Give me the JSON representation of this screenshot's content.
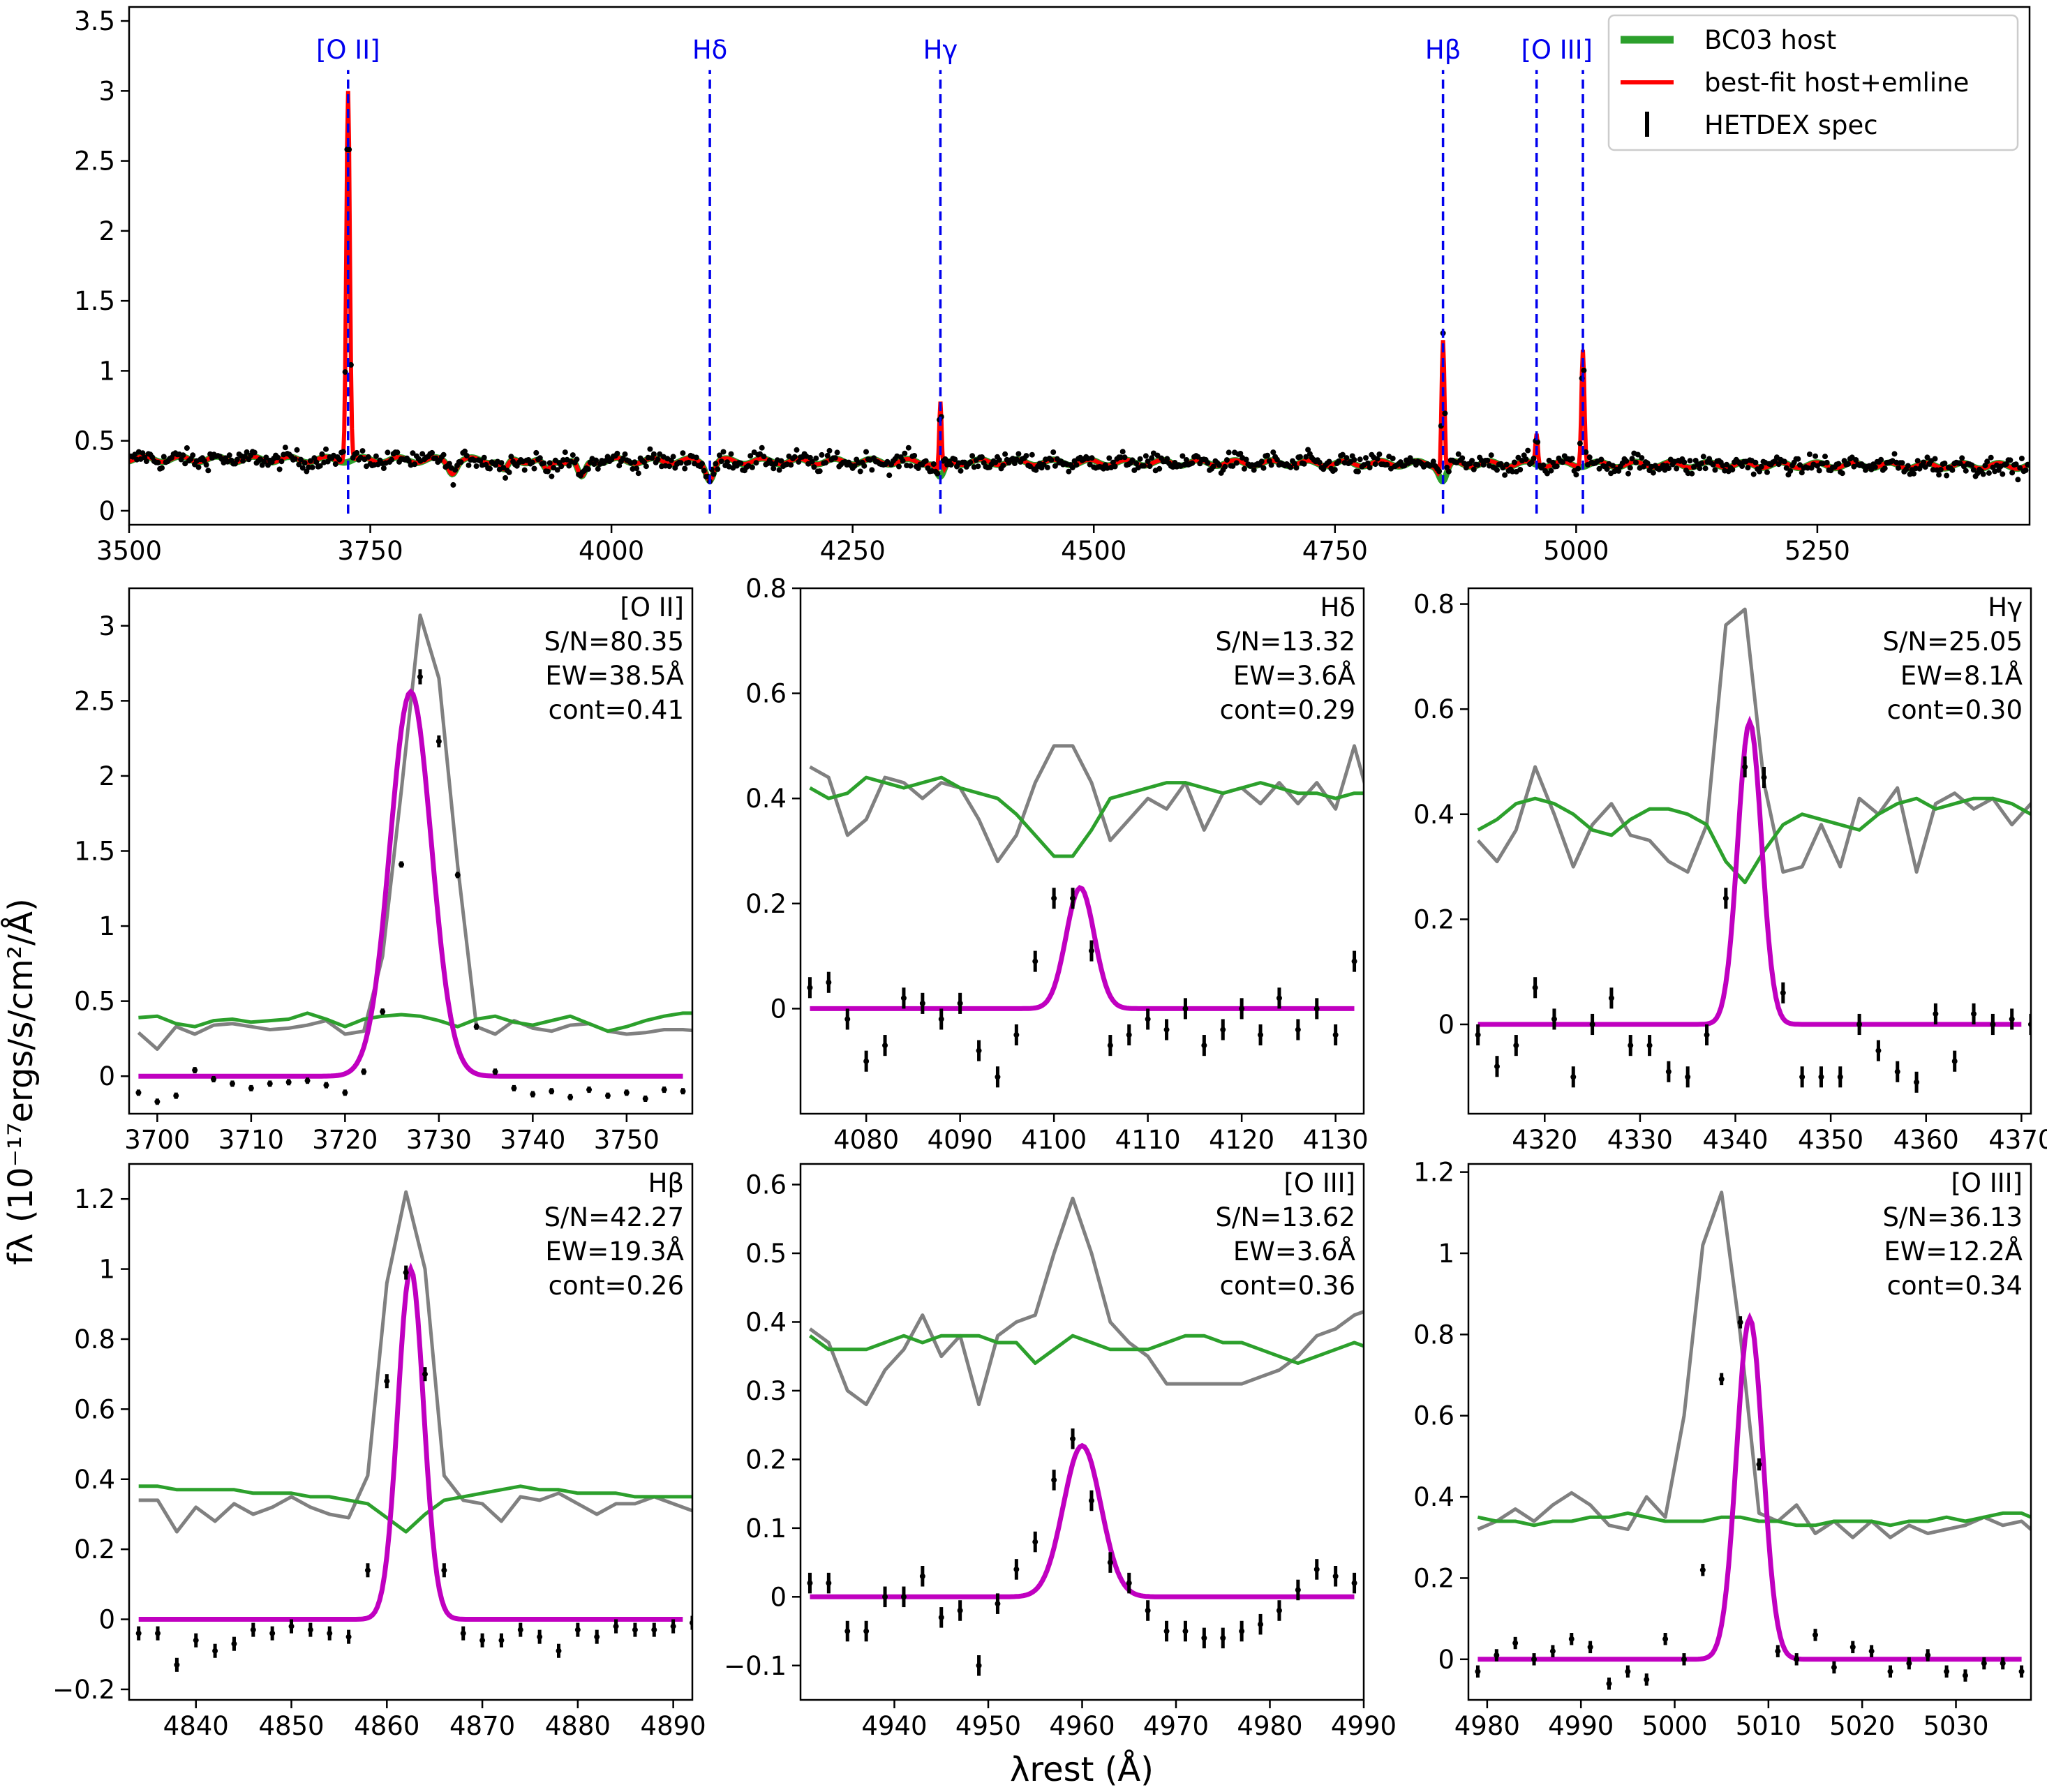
{
  "figure": {
    "xlabel": "λrest (Å)",
    "ylabel": "fλ (10⁻¹⁷ergs/s/cm²/Å)"
  },
  "colors": {
    "host": "#2ca02c",
    "fit": "#ff0000",
    "data": "#000000",
    "gauss": "#c000c0",
    "model_total": "#808080",
    "line_marker": "#0000ee"
  },
  "chart_data": [
    {
      "id": "overview",
      "type": "line",
      "xlim": [
        3500,
        5470
      ],
      "ylim": [
        -0.1,
        3.6
      ],
      "xticks": [
        3500,
        3750,
        4000,
        4250,
        4500,
        4750,
        5000,
        5250
      ],
      "yticks": [
        0.0,
        0.5,
        1.0,
        1.5,
        2.0,
        2.5,
        3.0,
        3.5
      ],
      "continuum": 0.37,
      "line_markers": [
        {
          "label": "[O II]",
          "x": 3727
        },
        {
          "label": "Hδ",
          "x": 4102
        },
        {
          "label": "Hγ",
          "x": 4341
        },
        {
          "label": "Hβ",
          "x": 4862
        },
        {
          "label": "[O III]",
          "x": 4959
        },
        {
          "label": "",
          "x": 5007
        }
      ],
      "emission_lines": [
        {
          "x": 3727,
          "peak": 3.0,
          "sigma": 1.8
        },
        {
          "x": 4341,
          "peak": 0.78,
          "sigma": 1.3
        },
        {
          "x": 4862,
          "peak": 1.22,
          "sigma": 1.5
        },
        {
          "x": 4959,
          "peak": 0.55,
          "sigma": 1.3
        },
        {
          "x": 5007,
          "peak": 1.15,
          "sigma": 1.5
        }
      ],
      "absorption_features": [
        {
          "x": 3835,
          "depth": 0.08
        },
        {
          "x": 3889,
          "depth": 0.08
        },
        {
          "x": 3933,
          "depth": 0.08
        },
        {
          "x": 3969,
          "depth": 0.13
        },
        {
          "x": 4102,
          "depth": 0.12
        },
        {
          "x": 4341,
          "depth": 0.12
        },
        {
          "x": 4862,
          "depth": 0.12
        }
      ],
      "legend": {
        "placement": "upper-right",
        "entries": [
          {
            "label": "BC03 host",
            "key": "host"
          },
          {
            "label": "best-fit host+emline",
            "key": "fit"
          },
          {
            "label": "HETDEX spec",
            "key": "data"
          }
        ]
      }
    },
    {
      "id": "oii",
      "type": "line",
      "xlim": [
        3697,
        3757
      ],
      "ylim": [
        -0.25,
        3.25
      ],
      "xticks": [
        3700,
        3710,
        3720,
        3730,
        3740,
        3750
      ],
      "yticks": [
        0.0,
        0.5,
        1.0,
        1.5,
        2.0,
        2.5,
        3.0
      ],
      "annotation": [
        "[O II]",
        "S/N=80.35",
        "EW=38.5Å",
        "cont=0.41"
      ],
      "gauss": {
        "center": 3727,
        "amp": 2.56,
        "sigma": 2.2
      },
      "step": 2,
      "host": [
        0.39,
        0.4,
        0.35,
        0.33,
        0.37,
        0.38,
        0.36,
        0.37,
        0.38,
        0.42,
        0.38,
        0.33,
        0.38,
        0.4,
        0.41,
        0.4,
        0.37,
        0.33,
        0.38,
        0.4,
        0.36,
        0.34,
        0.37,
        0.4,
        0.35,
        0.3,
        0.33,
        0.37,
        0.4,
        0.42,
        0.42
      ],
      "total": [
        0.29,
        0.18,
        0.33,
        0.28,
        0.34,
        0.35,
        0.33,
        0.31,
        0.32,
        0.34,
        0.37,
        0.28,
        0.3,
        0.8,
        1.9,
        3.07,
        2.65,
        1.4,
        0.33,
        0.28,
        0.37,
        0.32,
        0.3,
        0.34,
        0.35,
        0.3,
        0.28,
        0.29,
        0.31,
        0.31,
        0.3
      ],
      "data": [
        -0.11,
        -0.17,
        -0.13,
        0.04,
        -0.02,
        -0.05,
        -0.08,
        -0.05,
        -0.04,
        -0.03,
        -0.06,
        -0.11,
        0.03,
        0.43,
        1.41,
        2.66,
        2.23,
        1.34,
        0.33,
        0.03,
        -0.08,
        -0.12,
        -0.1,
        -0.14,
        -0.09,
        -0.13,
        -0.11,
        -0.15,
        -0.09,
        -0.1,
        -0.11
      ],
      "data_err": [
        0,
        0,
        0,
        0,
        0,
        0,
        0,
        0,
        0,
        0,
        0,
        0,
        0,
        0.02,
        0.02,
        0.05,
        0.04,
        0.02,
        0.01,
        0,
        0,
        0,
        0,
        0,
        0,
        0,
        0,
        0,
        0,
        0,
        0
      ]
    },
    {
      "id": "hdelta",
      "type": "line",
      "xlim": [
        4073,
        4133
      ],
      "ylim": [
        -0.2,
        0.8
      ],
      "xticks": [
        4080,
        4090,
        4100,
        4110,
        4120,
        4130
      ],
      "yticks": [
        0.0,
        0.2,
        0.4,
        0.6,
        0.8
      ],
      "annotation": [
        "Hδ",
        "S/N=13.32",
        "EW=3.6Å",
        "cont=0.29"
      ],
      "gauss": {
        "center": 4102.8,
        "amp": 0.23,
        "sigma": 1.5
      },
      "step": 2,
      "host": [
        0.42,
        0.4,
        0.41,
        0.44,
        0.43,
        0.42,
        0.43,
        0.44,
        0.42,
        0.41,
        0.4,
        0.37,
        0.33,
        0.29,
        0.29,
        0.34,
        0.4,
        0.41,
        0.42,
        0.43,
        0.43,
        0.42,
        0.41,
        0.42,
        0.43,
        0.42,
        0.41,
        0.41,
        0.4,
        0.41,
        0.41
      ],
      "total": [
        0.46,
        0.44,
        0.33,
        0.36,
        0.44,
        0.43,
        0.4,
        0.43,
        0.42,
        0.36,
        0.28,
        0.33,
        0.43,
        0.5,
        0.5,
        0.43,
        0.32,
        0.36,
        0.4,
        0.38,
        0.43,
        0.34,
        0.41,
        0.42,
        0.39,
        0.43,
        0.39,
        0.43,
        0.38,
        0.5,
        0.37
      ],
      "data": [
        0.04,
        0.05,
        -0.02,
        -0.1,
        -0.07,
        0.02,
        0.01,
        -0.02,
        0.01,
        -0.08,
        -0.13,
        -0.05,
        0.09,
        0.21,
        0.21,
        0.11,
        -0.07,
        -0.05,
        -0.02,
        -0.04,
        0.0,
        -0.07,
        -0.04,
        0.0,
        -0.05,
        0.02,
        -0.04,
        0.0,
        -0.05,
        0.09,
        -0.05
      ],
      "data_err": [
        0.02,
        0.02,
        0.02,
        0.02,
        0.02,
        0.02,
        0.02,
        0.02,
        0.02,
        0.02,
        0.02,
        0.02,
        0.02,
        0.02,
        0.02,
        0.02,
        0.02,
        0.02,
        0.02,
        0.02,
        0.02,
        0.02,
        0.02,
        0.02,
        0.02,
        0.02,
        0.02,
        0.02,
        0.02,
        0.02,
        0.02
      ]
    },
    {
      "id": "hgamma",
      "type": "line",
      "xlim": [
        4312,
        4371
      ],
      "ylim": [
        -0.17,
        0.83
      ],
      "xticks": [
        4320,
        4330,
        4340,
        4350,
        4360,
        4370
      ],
      "yticks": [
        0.0,
        0.2,
        0.4,
        0.6,
        0.8
      ],
      "annotation": [
        "Hγ",
        "S/N=25.05",
        "EW=8.1Å",
        "cont=0.30"
      ],
      "gauss": {
        "center": 4341.5,
        "amp": 0.575,
        "sigma": 1.25
      },
      "step": 2,
      "host": [
        0.37,
        0.39,
        0.42,
        0.43,
        0.42,
        0.4,
        0.37,
        0.36,
        0.39,
        0.41,
        0.41,
        0.4,
        0.38,
        0.31,
        0.27,
        0.33,
        0.38,
        0.4,
        0.39,
        0.38,
        0.37,
        0.4,
        0.42,
        0.43,
        0.41,
        0.42,
        0.43,
        0.43,
        0.42,
        0.4,
        0.4
      ],
      "total": [
        0.35,
        0.31,
        0.37,
        0.49,
        0.4,
        0.3,
        0.38,
        0.42,
        0.36,
        0.35,
        0.31,
        0.29,
        0.38,
        0.76,
        0.79,
        0.46,
        0.29,
        0.3,
        0.38,
        0.3,
        0.43,
        0.4,
        0.45,
        0.29,
        0.42,
        0.44,
        0.41,
        0.43,
        0.38,
        0.42,
        0.39
      ],
      "data": [
        -0.02,
        -0.08,
        -0.04,
        0.07,
        0.01,
        -0.1,
        0.0,
        0.05,
        -0.04,
        -0.04,
        -0.09,
        -0.1,
        -0.02,
        0.24,
        0.49,
        0.47,
        0.06,
        -0.1,
        -0.1,
        -0.1,
        0.0,
        -0.05,
        -0.09,
        -0.11,
        0.02,
        -0.07,
        0.02,
        0.0,
        0.01,
        0.0,
        0.0
      ],
      "data_err": [
        0.02,
        0.02,
        0.02,
        0.02,
        0.02,
        0.02,
        0.02,
        0.02,
        0.02,
        0.02,
        0.02,
        0.02,
        0.02,
        0.02,
        0.02,
        0.02,
        0.02,
        0.02,
        0.02,
        0.02,
        0.02,
        0.02,
        0.02,
        0.02,
        0.02,
        0.02,
        0.02,
        0.02,
        0.02,
        0.02,
        0.02
      ]
    },
    {
      "id": "hbeta",
      "type": "line",
      "xlim": [
        4833,
        4892
      ],
      "ylim": [
        -0.23,
        1.3
      ],
      "xticks": [
        4840,
        4850,
        4860,
        4870,
        4880,
        4890
      ],
      "yticks": [
        -0.2,
        0.0,
        0.2,
        0.4,
        0.6,
        0.8,
        1.0,
        1.2
      ],
      "annotation": [
        "Hβ",
        "S/N=42.27",
        "EW=19.3Å",
        "cont=0.26"
      ],
      "gauss": {
        "center": 4862.5,
        "amp": 1.0,
        "sigma": 1.35
      },
      "step": 2,
      "host": [
        0.38,
        0.38,
        0.37,
        0.37,
        0.37,
        0.37,
        0.36,
        0.36,
        0.36,
        0.35,
        0.35,
        0.34,
        0.33,
        0.29,
        0.25,
        0.3,
        0.34,
        0.35,
        0.36,
        0.37,
        0.38,
        0.37,
        0.37,
        0.36,
        0.36,
        0.36,
        0.35,
        0.35,
        0.35,
        0.35
      ],
      "total": [
        0.34,
        0.34,
        0.25,
        0.32,
        0.28,
        0.33,
        0.3,
        0.32,
        0.35,
        0.32,
        0.3,
        0.29,
        0.41,
        0.96,
        1.22,
        1.0,
        0.41,
        0.34,
        0.33,
        0.28,
        0.35,
        0.34,
        0.36,
        0.33,
        0.3,
        0.33,
        0.33,
        0.35,
        0.33,
        0.31
      ],
      "data": [
        -0.04,
        -0.04,
        -0.13,
        -0.06,
        -0.09,
        -0.07,
        -0.03,
        -0.04,
        -0.02,
        -0.03,
        -0.04,
        -0.05,
        0.14,
        0.68,
        0.99,
        0.7,
        0.14,
        -0.04,
        -0.06,
        -0.06,
        -0.03,
        -0.05,
        -0.09,
        -0.03,
        -0.05,
        -0.02,
        -0.03,
        -0.03,
        -0.02,
        -0.01
      ],
      "data_err": [
        0.02,
        0.02,
        0.02,
        0.02,
        0.02,
        0.02,
        0.02,
        0.02,
        0.02,
        0.02,
        0.02,
        0.02,
        0.02,
        0.02,
        0.02,
        0.02,
        0.02,
        0.02,
        0.02,
        0.02,
        0.02,
        0.02,
        0.02,
        0.02,
        0.02,
        0.02,
        0.02,
        0.02,
        0.02,
        0.02
      ]
    },
    {
      "id": "oiii4959",
      "type": "line",
      "xlim": [
        4930,
        4990
      ],
      "ylim": [
        -0.15,
        0.63
      ],
      "xticks": [
        4940,
        4950,
        4960,
        4970,
        4980,
        4990
      ],
      "yticks": [
        -0.1,
        0.0,
        0.1,
        0.2,
        0.3,
        0.4,
        0.5,
        0.6
      ],
      "annotation": [
        "[O III]",
        "S/N=13.62",
        "EW=3.6Å",
        "cont=0.36"
      ],
      "gauss": {
        "center": 4960,
        "amp": 0.22,
        "sigma": 2.0
      },
      "step": 2,
      "host": [
        0.38,
        0.36,
        0.36,
        0.36,
        0.37,
        0.38,
        0.37,
        0.38,
        0.38,
        0.38,
        0.37,
        0.37,
        0.34,
        0.36,
        0.38,
        0.37,
        0.36,
        0.36,
        0.36,
        0.37,
        0.38,
        0.38,
        0.37,
        0.37,
        0.36,
        0.35,
        0.34,
        0.35,
        0.36,
        0.37,
        0.36
      ],
      "total": [
        0.39,
        0.37,
        0.3,
        0.28,
        0.33,
        0.36,
        0.41,
        0.35,
        0.38,
        0.28,
        0.38,
        0.4,
        0.41,
        0.5,
        0.58,
        0.5,
        0.4,
        0.37,
        0.35,
        0.31,
        0.31,
        0.31,
        0.31,
        0.31,
        0.32,
        0.33,
        0.35,
        0.38,
        0.39,
        0.41,
        0.42
      ],
      "data": [
        0.02,
        0.02,
        -0.05,
        -0.05,
        0.0,
        0.0,
        0.03,
        -0.03,
        -0.02,
        -0.1,
        -0.01,
        0.04,
        0.08,
        0.17,
        0.23,
        0.14,
        0.05,
        0.02,
        -0.02,
        -0.05,
        -0.05,
        -0.06,
        -0.06,
        -0.05,
        -0.04,
        -0.02,
        0.01,
        0.04,
        0.03,
        0.02,
        0.05
      ],
      "data_err": [
        0.015,
        0.015,
        0.015,
        0.015,
        0.015,
        0.015,
        0.015,
        0.015,
        0.015,
        0.015,
        0.015,
        0.015,
        0.015,
        0.015,
        0.015,
        0.015,
        0.015,
        0.015,
        0.015,
        0.015,
        0.015,
        0.015,
        0.015,
        0.015,
        0.015,
        0.015,
        0.015,
        0.015,
        0.015,
        0.015,
        0.015
      ]
    },
    {
      "id": "oiii5007",
      "type": "line",
      "xlim": [
        4978,
        5038
      ],
      "ylim": [
        -0.1,
        1.22
      ],
      "xticks": [
        4980,
        4990,
        5000,
        5010,
        5020,
        5030
      ],
      "yticks": [
        0.0,
        0.2,
        0.4,
        0.6,
        0.8,
        1.0,
        1.2
      ],
      "annotation": [
        "[O III]",
        "S/N=36.13",
        "EW=12.2Å",
        "cont=0.34"
      ],
      "gauss": {
        "center": 5008,
        "amp": 0.84,
        "sigma": 1.4
      },
      "step": 2,
      "host": [
        0.35,
        0.34,
        0.34,
        0.33,
        0.34,
        0.34,
        0.35,
        0.35,
        0.36,
        0.35,
        0.34,
        0.34,
        0.34,
        0.35,
        0.35,
        0.34,
        0.34,
        0.33,
        0.33,
        0.34,
        0.34,
        0.34,
        0.33,
        0.34,
        0.34,
        0.35,
        0.34,
        0.35,
        0.36,
        0.36,
        0.34
      ],
      "total": [
        0.32,
        0.34,
        0.37,
        0.34,
        0.38,
        0.41,
        0.38,
        0.33,
        0.32,
        0.4,
        0.35,
        0.6,
        1.02,
        1.15,
        0.8,
        0.36,
        0.34,
        0.38,
        0.31,
        0.34,
        0.3,
        0.34,
        0.3,
        0.33,
        0.31,
        0.32,
        0.33,
        0.35,
        0.33,
        0.34,
        0.3
      ],
      "data": [
        -0.03,
        0.01,
        0.04,
        0.0,
        0.02,
        0.05,
        0.03,
        -0.06,
        -0.03,
        -0.05,
        0.05,
        0.0,
        0.22,
        0.69,
        0.83,
        0.48,
        0.02,
        0.0,
        0.06,
        -0.02,
        0.03,
        0.02,
        -0.03,
        -0.01,
        0.01,
        -0.03,
        -0.04,
        -0.01,
        -0.01,
        -0.03,
        -0.04
      ],
      "data_err": [
        0.015,
        0.015,
        0.015,
        0.015,
        0.015,
        0.015,
        0.015,
        0.015,
        0.015,
        0.015,
        0.015,
        0.015,
        0.015,
        0.015,
        0.015,
        0.015,
        0.015,
        0.015,
        0.015,
        0.015,
        0.015,
        0.015,
        0.015,
        0.015,
        0.015,
        0.015,
        0.015,
        0.015,
        0.015,
        0.015,
        0.015
      ]
    }
  ]
}
